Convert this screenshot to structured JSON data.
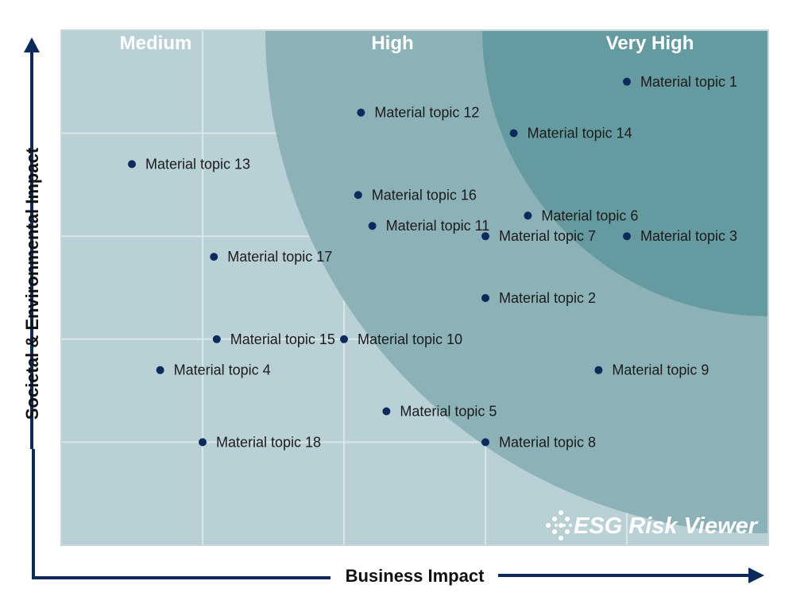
{
  "chart_data": {
    "type": "scatter",
    "xlabel": "Business Impact",
    "ylabel": "Societal & Environmental Impact",
    "xlim": [
      0,
      5
    ],
    "ylim": [
      0,
      5
    ],
    "grid": true,
    "zones": [
      "Medium",
      "High",
      "Very High"
    ],
    "watermark": "ESG Risk Viewer",
    "points": [
      {
        "label": "Material topic 1",
        "x": 4.0,
        "y": 4.5
      },
      {
        "label": "Material topic 2",
        "x": 3.0,
        "y": 2.4
      },
      {
        "label": "Material topic 3",
        "x": 4.0,
        "y": 3.0
      },
      {
        "label": "Material topic 4",
        "x": 0.7,
        "y": 1.7
      },
      {
        "label": "Material topic 5",
        "x": 2.3,
        "y": 1.3
      },
      {
        "label": "Material topic 6",
        "x": 3.3,
        "y": 3.2
      },
      {
        "label": "Material topic 7",
        "x": 3.0,
        "y": 3.0
      },
      {
        "label": "Material topic 8",
        "x": 3.0,
        "y": 1.0
      },
      {
        "label": "Material topic 9",
        "x": 3.8,
        "y": 1.7
      },
      {
        "label": "Material topic 10",
        "x": 2.0,
        "y": 2.0
      },
      {
        "label": "Material topic 11",
        "x": 2.2,
        "y": 3.1
      },
      {
        "label": "Material topic 12",
        "x": 2.12,
        "y": 4.2
      },
      {
        "label": "Material topic 13",
        "x": 0.5,
        "y": 3.7
      },
      {
        "label": "Material topic 14",
        "x": 3.2,
        "y": 4.0
      },
      {
        "label": "Material topic 15",
        "x": 1.1,
        "y": 2.0
      },
      {
        "label": "Material topic 16",
        "x": 2.1,
        "y": 3.4
      },
      {
        "label": "Material topic 17",
        "x": 1.08,
        "y": 2.8
      },
      {
        "label": "Material topic 18",
        "x": 1.0,
        "y": 1.0
      }
    ]
  },
  "colors": {
    "background": "#b9d1d6",
    "zone_high": "#8cb2b8",
    "zone_very_high": "#659ba0",
    "grid": "#dbe6e8",
    "point": "#0c2a5c",
    "axis": "#0c2a5c"
  }
}
